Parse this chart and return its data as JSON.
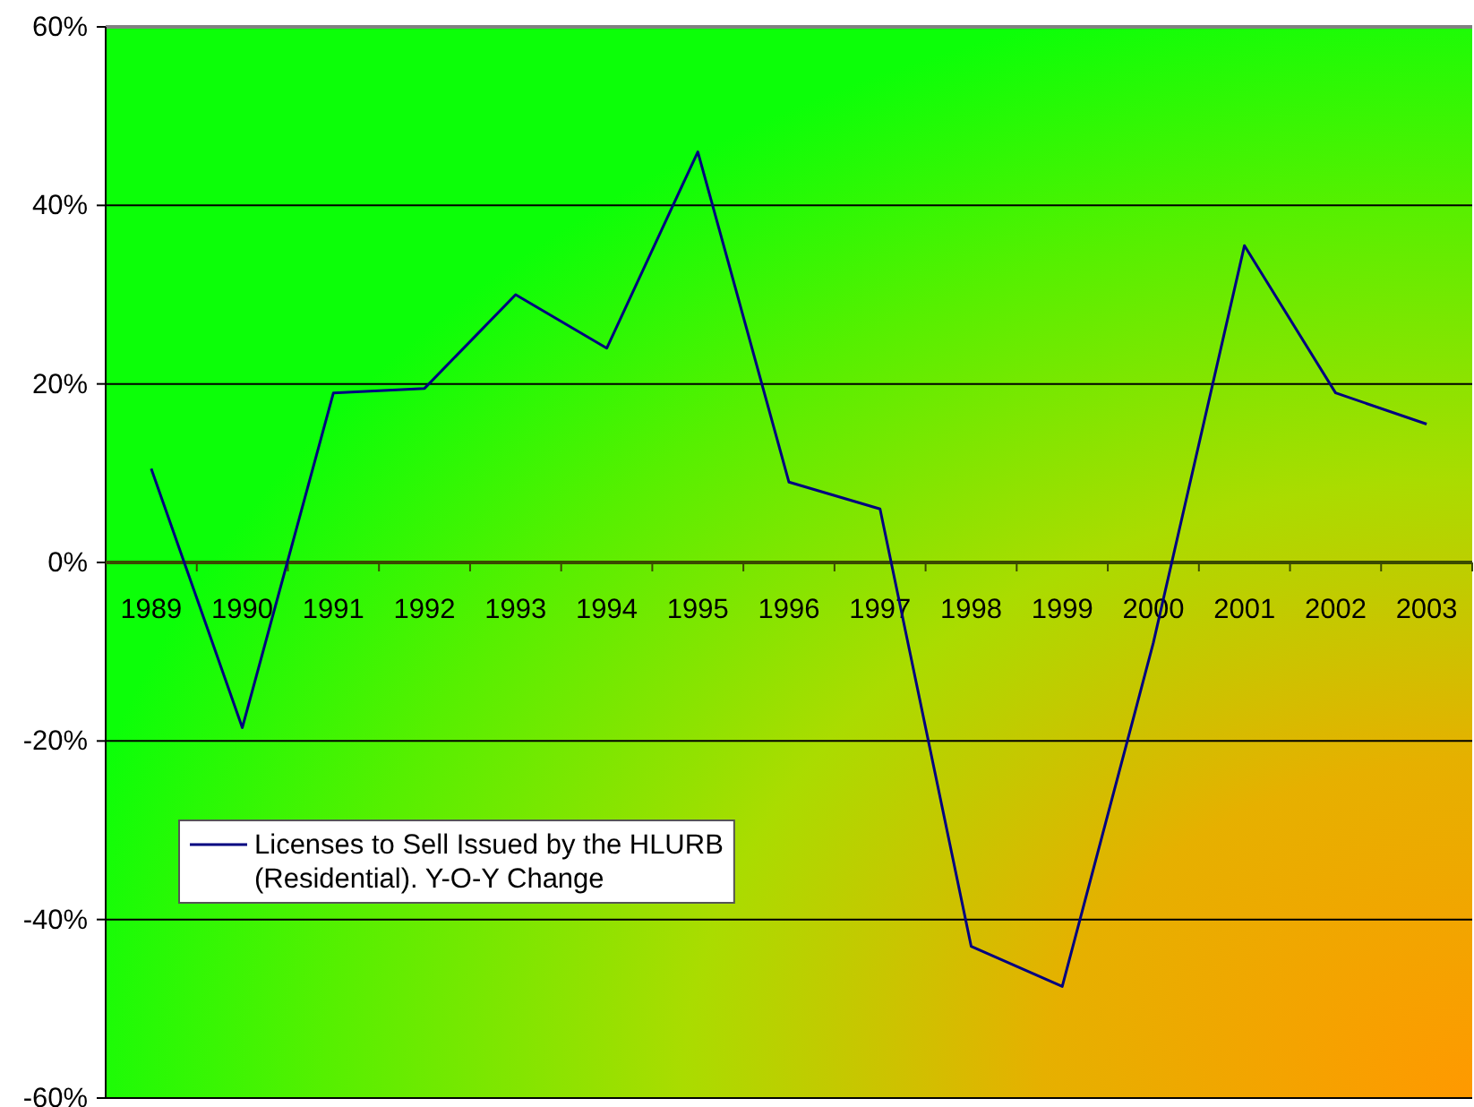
{
  "chart_data": {
    "type": "line",
    "categories": [
      "1989",
      "1990",
      "1991",
      "1992",
      "1993",
      "1994",
      "1995",
      "1996",
      "1997",
      "1998",
      "1999",
      "2000",
      "2001",
      "2002",
      "2003"
    ],
    "series": [
      {
        "name": "Licenses to Sell Issued by the HLURB (Residential). Y-O-Y Change",
        "color": "#000080",
        "values": [
          10.5,
          -18.5,
          19,
          19.5,
          30,
          24,
          46,
          9,
          6,
          -43,
          -47.5,
          -9,
          35.5,
          19,
          15.5
        ]
      }
    ],
    "ylim": [
      -60,
      60
    ],
    "yticks": [
      {
        "value": -60,
        "label": "-60%"
      },
      {
        "value": -40,
        "label": "-40%"
      },
      {
        "value": -20,
        "label": "-20%"
      },
      {
        "value": 0,
        "label": "0%"
      },
      {
        "value": 20,
        "label": "20%"
      },
      {
        "value": 40,
        "label": "40%"
      },
      {
        "value": 60,
        "label": "60%"
      }
    ],
    "grid": "y",
    "legend": "bottom left",
    "marker": "none",
    "line_style": "solid"
  }
}
